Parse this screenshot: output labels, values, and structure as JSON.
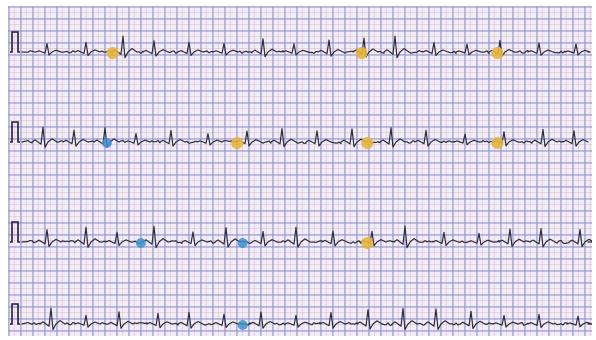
{
  "image": {
    "strips": [
      {
        "id": "strip-1",
        "markers": [
          {
            "color": "yellow",
            "x": 0.16
          },
          {
            "color": "yellow",
            "x": 0.6
          },
          {
            "color": "yellow",
            "x": 0.84
          }
        ]
      },
      {
        "id": "strip-2",
        "markers": [
          {
            "color": "blue",
            "x": 0.15
          },
          {
            "color": "yellow",
            "x": 0.38
          },
          {
            "color": "yellow",
            "x": 0.61
          },
          {
            "color": "yellow",
            "x": 0.84
          }
        ]
      },
      {
        "id": "strip-3",
        "markers": [
          {
            "color": "blue",
            "x": 0.21
          },
          {
            "color": "blue",
            "x": 0.39
          },
          {
            "color": "yellow",
            "x": 0.61
          }
        ]
      },
      {
        "id": "strip-4",
        "markers": [
          {
            "color": "blue",
            "x": 0.39
          }
        ]
      }
    ],
    "colors": {
      "grid_major": "#9696d2",
      "grid_minor": "#e1a0aa",
      "paper": "#efeef8",
      "trace": "#2b2d3a",
      "marker_yellow": "#e6b53c",
      "marker_blue": "#3d8fcf"
    }
  }
}
